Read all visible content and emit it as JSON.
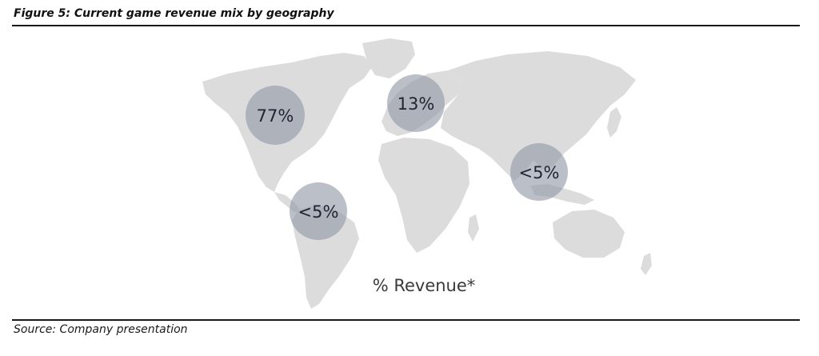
{
  "figure": {
    "title": "Figure 5: Current game revenue mix by geography",
    "source": "Source: Company presentation"
  },
  "colors": {
    "land": "#dcdcdc",
    "bubble_fill": "#8f97a6",
    "bubble_text": "#1f2430",
    "caption": "#3a3a3a",
    "rule": "#1a1a1a"
  },
  "chart_data": {
    "type": "bubble-map",
    "title": "",
    "caption": "% Revenue*",
    "regions": [
      {
        "key": "north_america",
        "label": "77%"
      },
      {
        "key": "europe",
        "label": "13%"
      },
      {
        "key": "south_america",
        "label": "<5%"
      },
      {
        "key": "asia",
        "label": "<5%"
      }
    ]
  }
}
